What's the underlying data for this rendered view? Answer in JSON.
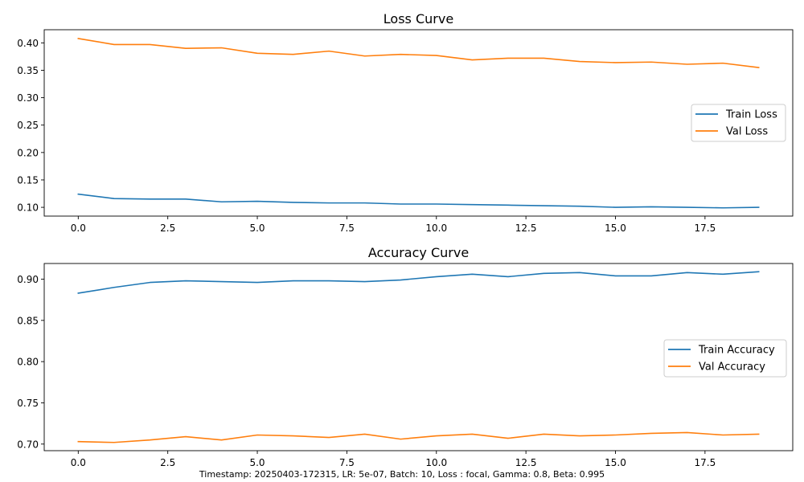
{
  "footnote": "Timestamp: 20250403-172315, LR: 5e-07, Batch: 10, Loss : focal, Gamma: 0.8, Beta: 0.995",
  "colors": {
    "train": "#1f77b4",
    "val": "#ff7f0e",
    "axis": "#000000",
    "legend_border": "#cccccc"
  },
  "chart_data": [
    {
      "type": "line",
      "title": "Loss Curve",
      "xlabel": "",
      "ylabel": "",
      "xlim": [
        -0.95,
        19.95
      ],
      "ylim": [
        0.084,
        0.424
      ],
      "xticks": [
        0,
        2.5,
        5,
        7.5,
        10,
        12.5,
        15,
        17.5
      ],
      "xtick_labels": [
        "0.0",
        "2.5",
        "5.0",
        "7.5",
        "10.0",
        "12.5",
        "15.0",
        "17.5"
      ],
      "yticks": [
        0.1,
        0.15,
        0.2,
        0.25,
        0.3,
        0.35,
        0.4
      ],
      "ytick_labels": [
        "0.10",
        "0.15",
        "0.20",
        "0.25",
        "0.30",
        "0.35",
        "0.40"
      ],
      "grid": false,
      "legend_position": "center-right",
      "x": [
        0,
        1,
        2,
        3,
        4,
        5,
        6,
        7,
        8,
        9,
        10,
        11,
        12,
        13,
        14,
        15,
        16,
        17,
        18,
        19
      ],
      "series": [
        {
          "name": "Train Loss",
          "color": "#1f77b4",
          "values": [
            0.124,
            0.116,
            0.115,
            0.115,
            0.11,
            0.111,
            0.109,
            0.108,
            0.108,
            0.106,
            0.106,
            0.105,
            0.104,
            0.103,
            0.102,
            0.1,
            0.101,
            0.1,
            0.099,
            0.1
          ]
        },
        {
          "name": "Val Loss",
          "color": "#ff7f0e",
          "values": [
            0.408,
            0.397,
            0.397,
            0.39,
            0.391,
            0.381,
            0.379,
            0.385,
            0.376,
            0.379,
            0.377,
            0.369,
            0.372,
            0.372,
            0.366,
            0.364,
            0.365,
            0.361,
            0.363,
            0.355
          ]
        }
      ]
    },
    {
      "type": "line",
      "title": "Accuracy Curve",
      "xlabel": "",
      "ylabel": "",
      "xlim": [
        -0.95,
        19.95
      ],
      "ylim": [
        0.692,
        0.919
      ],
      "xticks": [
        0,
        2.5,
        5,
        7.5,
        10,
        12.5,
        15,
        17.5
      ],
      "xtick_labels": [
        "0.0",
        "2.5",
        "5.0",
        "7.5",
        "10.0",
        "12.5",
        "15.0",
        "17.5"
      ],
      "yticks": [
        0.7,
        0.75,
        0.8,
        0.85,
        0.9
      ],
      "ytick_labels": [
        "0.70",
        "0.75",
        "0.80",
        "0.85",
        "0.90"
      ],
      "grid": false,
      "legend_position": "center-right",
      "x": [
        0,
        1,
        2,
        3,
        4,
        5,
        6,
        7,
        8,
        9,
        10,
        11,
        12,
        13,
        14,
        15,
        16,
        17,
        18,
        19
      ],
      "series": [
        {
          "name": "Train Accuracy",
          "color": "#1f77b4",
          "values": [
            0.883,
            0.89,
            0.896,
            0.898,
            0.897,
            0.896,
            0.898,
            0.898,
            0.897,
            0.899,
            0.903,
            0.906,
            0.903,
            0.907,
            0.908,
            0.904,
            0.904,
            0.908,
            0.906,
            0.909
          ]
        },
        {
          "name": "Val Accuracy",
          "color": "#ff7f0e",
          "values": [
            0.703,
            0.702,
            0.705,
            0.709,
            0.705,
            0.711,
            0.71,
            0.708,
            0.712,
            0.706,
            0.71,
            0.712,
            0.707,
            0.712,
            0.71,
            0.711,
            0.713,
            0.714,
            0.711,
            0.712
          ]
        }
      ]
    }
  ]
}
